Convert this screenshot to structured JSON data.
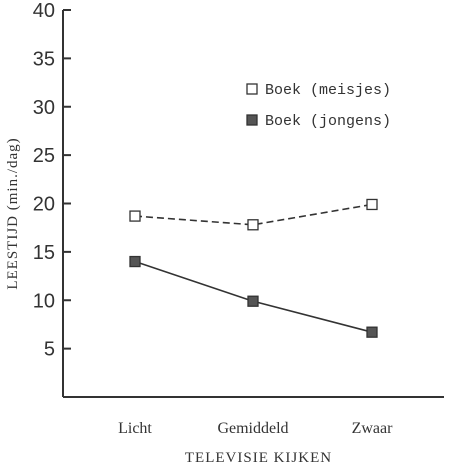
{
  "chart_data": {
    "type": "line",
    "categories": [
      "Licht",
      "Gemiddeld",
      "Zwaar"
    ],
    "series": [
      {
        "name": "Boek (meisjes)",
        "values": [
          18.7,
          17.8,
          19.9
        ],
        "marker": "open-square",
        "line_style": "dashed",
        "color": "#333333"
      },
      {
        "name": "Boek (jongens)",
        "values": [
          14.0,
          9.9,
          6.7
        ],
        "marker": "filled-square",
        "line_style": "solid",
        "color": "#333333"
      }
    ],
    "title": "",
    "xlabel": "TELEVISIE KIJKEN",
    "ylabel": "LEESTIJD (min./dag)",
    "ylim": [
      0,
      40
    ],
    "yticks": [
      "5",
      "10",
      "15",
      "20",
      "25",
      "30",
      "35",
      "40"
    ],
    "grid": false,
    "legend_position": "top-right"
  }
}
